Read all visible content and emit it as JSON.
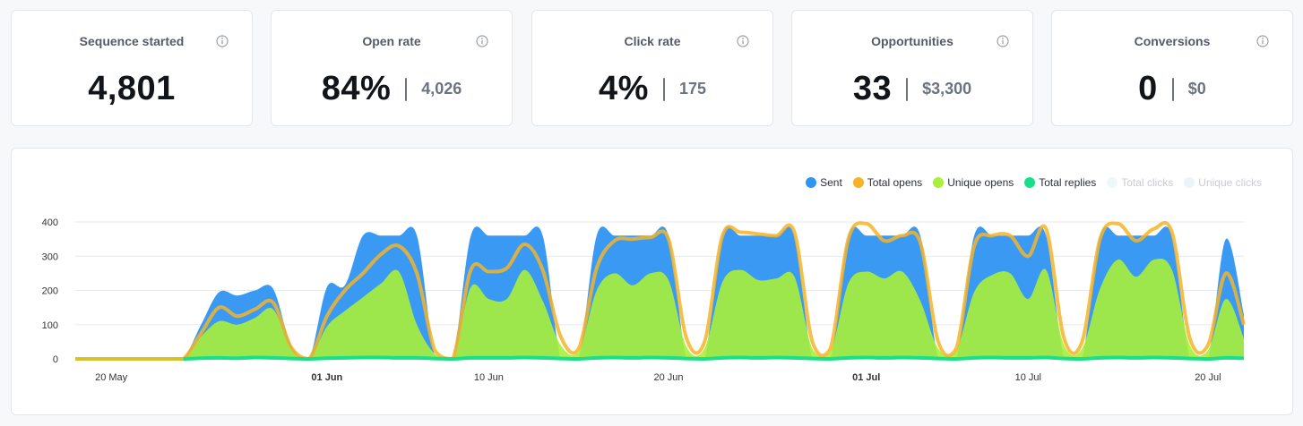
{
  "stats": [
    {
      "title": "Sequence started",
      "value": "4,801",
      "sub": ""
    },
    {
      "title": "Open rate",
      "value": "84%",
      "sub": "4,026"
    },
    {
      "title": "Click rate",
      "value": "4%",
      "sub": "175"
    },
    {
      "title": "Opportunities",
      "value": "33",
      "sub": "$3,300"
    },
    {
      "title": "Conversions",
      "value": "0",
      "sub": "$0"
    }
  ],
  "icons": {
    "info": "info-circle-icon"
  },
  "legend": [
    {
      "label": "Sent",
      "color": "#2f95f2",
      "active": true
    },
    {
      "label": "Total opens",
      "color": "#f5b428",
      "active": true
    },
    {
      "label": "Unique opens",
      "color": "#a8f03a",
      "active": true
    },
    {
      "label": "Total replies",
      "color": "#18e08a",
      "active": true
    },
    {
      "label": "Total clicks",
      "color": "#edf8f8",
      "active": false
    },
    {
      "label": "Unique clicks",
      "color": "#edf4f8",
      "active": false
    }
  ],
  "chart_data": {
    "type": "area",
    "x_start": "2024-05-18",
    "x_ticks": [
      {
        "date": "2024-05-20",
        "label": "20 May",
        "bold": false
      },
      {
        "date": "2024-06-01",
        "label": "01 Jun",
        "bold": true
      },
      {
        "date": "2024-06-10",
        "label": "10 Jun",
        "bold": false
      },
      {
        "date": "2024-06-20",
        "label": "20 Jun",
        "bold": false
      },
      {
        "date": "2024-07-01",
        "label": "01 Jul",
        "bold": true
      },
      {
        "date": "2024-07-10",
        "label": "10 Jul",
        "bold": false
      },
      {
        "date": "2024-07-20",
        "label": "20 Jul",
        "bold": false
      }
    ],
    "y_ticks": [
      0,
      100,
      200,
      300,
      400
    ],
    "ylim": [
      0,
      400
    ],
    "grid": true,
    "legend_position": "top-right",
    "series": [
      {
        "name": "Sent",
        "values": [
          0,
          0,
          0,
          0,
          0,
          0,
          0,
          100,
          195,
          185,
          200,
          205,
          40,
          0,
          210,
          215,
          360,
          360,
          360,
          360,
          10,
          0,
          360,
          360,
          360,
          360,
          360,
          0,
          0,
          360,
          360,
          360,
          360,
          360,
          0,
          0,
          360,
          360,
          360,
          360,
          360,
          0,
          0,
          360,
          360,
          360,
          360,
          360,
          0,
          0,
          360,
          360,
          360,
          360,
          360,
          0,
          0,
          360,
          360,
          360,
          360,
          360,
          0,
          0,
          350,
          130
        ]
      },
      {
        "name": "Total opens",
        "values": [
          0,
          0,
          0,
          0,
          0,
          0,
          0,
          75,
          150,
          125,
          145,
          165,
          35,
          0,
          125,
          200,
          250,
          305,
          330,
          250,
          25,
          0,
          260,
          255,
          265,
          335,
          260,
          65,
          30,
          265,
          345,
          350,
          355,
          350,
          60,
          50,
          360,
          370,
          365,
          360,
          370,
          50,
          30,
          350,
          395,
          345,
          360,
          340,
          50,
          30,
          330,
          360,
          360,
          300,
          380,
          60,
          50,
          350,
          395,
          345,
          380,
          370,
          60,
          40,
          250,
          100
        ]
      },
      {
        "name": "Unique opens",
        "values": [
          0,
          0,
          0,
          0,
          0,
          0,
          0,
          65,
          110,
          100,
          120,
          145,
          30,
          0,
          95,
          140,
          180,
          220,
          255,
          100,
          15,
          0,
          210,
          175,
          175,
          260,
          170,
          40,
          20,
          200,
          250,
          215,
          250,
          230,
          35,
          30,
          225,
          260,
          230,
          235,
          240,
          30,
          20,
          220,
          255,
          235,
          255,
          170,
          30,
          25,
          195,
          245,
          250,
          175,
          260,
          40,
          30,
          205,
          290,
          240,
          290,
          260,
          40,
          25,
          175,
          60
        ]
      },
      {
        "name": "Total replies",
        "values": [
          0,
          0,
          0,
          0,
          0,
          0,
          0,
          2,
          3,
          2,
          4,
          3,
          1,
          0,
          2,
          3,
          4,
          4,
          3,
          3,
          1,
          0,
          3,
          3,
          3,
          4,
          3,
          1,
          0,
          3,
          4,
          3,
          4,
          3,
          1,
          0,
          3,
          4,
          3,
          4,
          3,
          1,
          0,
          3,
          4,
          3,
          4,
          3,
          1,
          0,
          3,
          4,
          3,
          3,
          4,
          1,
          0,
          3,
          4,
          3,
          4,
          3,
          1,
          0,
          3,
          2
        ]
      }
    ]
  }
}
